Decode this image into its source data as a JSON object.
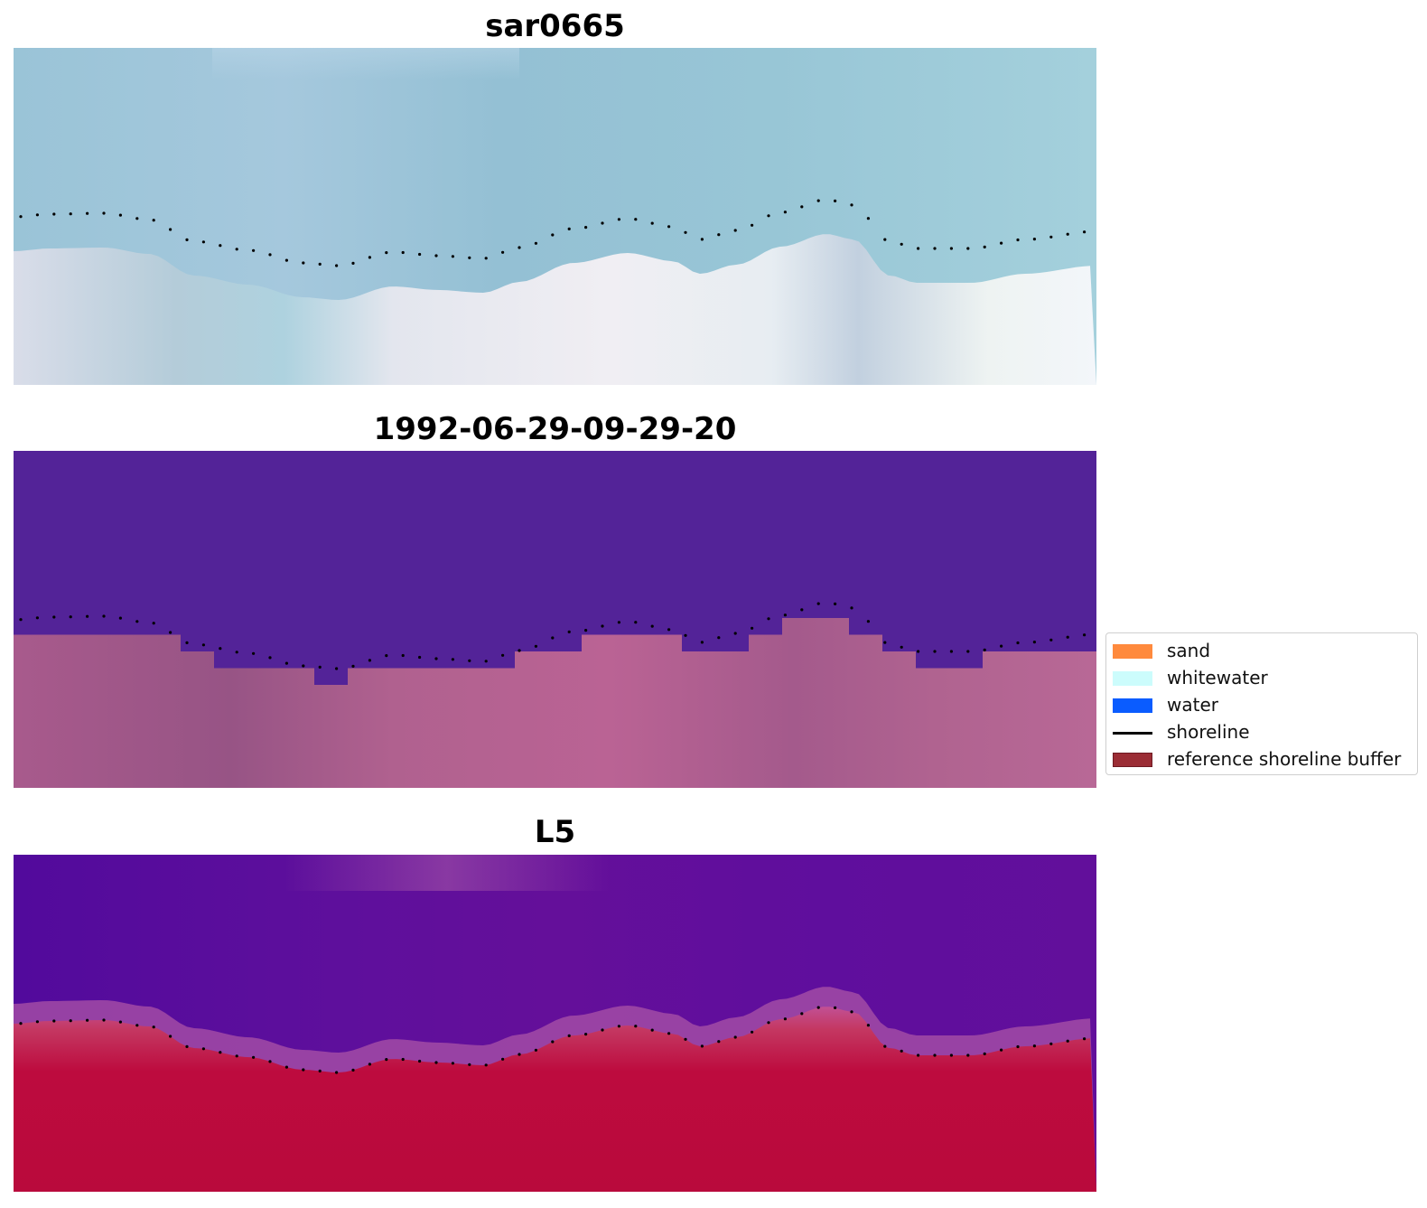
{
  "panels": [
    {
      "title": "sar0665",
      "style": "rgb"
    },
    {
      "title": "1992-06-29-09-29-20",
      "style": "classification"
    },
    {
      "title": "L5",
      "style": "index"
    }
  ],
  "legend": {
    "items": [
      {
        "label": "sand",
        "color": "#ff8a3d",
        "kind": "patch"
      },
      {
        "label": "whitewater",
        "color": "#ccfcfc",
        "kind": "patch"
      },
      {
        "label": "water",
        "color": "#0a5cff",
        "kind": "patch"
      },
      {
        "label": "shoreline",
        "color": "#000000",
        "kind": "line"
      },
      {
        "label": "reference shoreline buffer",
        "color": "#9b2d35",
        "border": "#6e1a22",
        "kind": "patch"
      }
    ]
  },
  "colors": {
    "rgb_water": "#93c4d6",
    "rgb_water_dark": "#8ab9d2",
    "rgb_land": "#dfe6ee",
    "class_water": "#532398",
    "class_land": "#b15e90",
    "index_water": "#5d0e9a",
    "index_land": "#bd0a3f",
    "index_edge": "#c05a9a",
    "shoreline_dots": "#000000"
  }
}
